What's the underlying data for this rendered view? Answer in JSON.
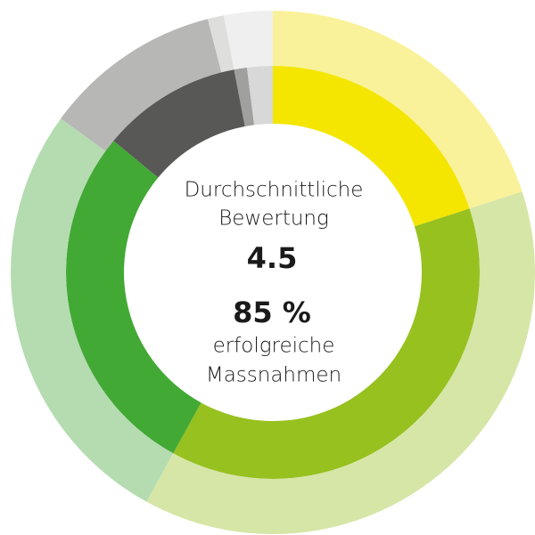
{
  "chart_data": {
    "type": "nested-donut",
    "rings": [
      {
        "values": [
          20,
          38,
          28,
          11,
          1,
          2
        ],
        "colors": [
          "#f4e600",
          "#97c11f",
          "#43a935",
          "#585856",
          "#a0a09f",
          "#d8d8d8"
        ]
      },
      {
        "values": [
          20,
          38,
          27,
          11,
          1,
          3
        ],
        "colors": [
          "#f9f29a",
          "#d6e6a7",
          "#b4dcb0",
          "#b7b7b6",
          "#dededd",
          "#efefef"
        ]
      }
    ],
    "rating_label": [
      "Durchschnittliche",
      "Bewertung"
    ],
    "rating": 4.5,
    "success_rate": "85 %",
    "success_label": [
      "erfolgreiche",
      "Massnahmen"
    ]
  }
}
